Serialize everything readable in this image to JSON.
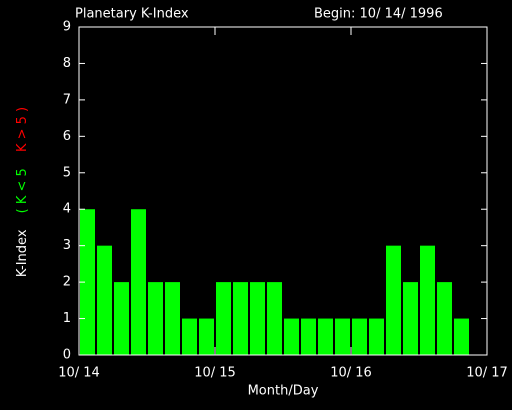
{
  "chart_data": {
    "type": "bar",
    "title": "Planetary K-Index",
    "subtitle": "Begin: 10/ 14/ 1996",
    "y_label": "K-Index",
    "legend": [
      {
        "label": "( K < 5",
        "color": "#00ff00"
      },
      {
        "label": "K > 5 )",
        "color": "#ff0000"
      }
    ],
    "x_label": "Month/Day",
    "x": [
      0,
      0.125,
      0.25,
      0.375,
      0.5,
      0.625,
      0.75,
      0.875,
      1,
      1.125,
      1.25,
      1.375,
      1.5,
      1.625,
      1.75,
      1.875,
      2,
      2.125,
      2.25,
      2.375,
      2.5,
      2.625,
      2.75
    ],
    "values": [
      4,
      3,
      2,
      4,
      2,
      2,
      1,
      1,
      2,
      2,
      2,
      2,
      1,
      1,
      1,
      1,
      1,
      1,
      3,
      2,
      3,
      2,
      1
    ],
    "bar_width": 0.125,
    "color": "#00ff00",
    "xlim": [
      0,
      3
    ],
    "xticks": [
      {
        "value": 0,
        "label": "10/ 14"
      },
      {
        "value": 1,
        "label": "10/ 15"
      },
      {
        "value": 2,
        "label": "10/ 16"
      },
      {
        "value": 3,
        "label": "10/ 17"
      }
    ],
    "ylim": [
      0,
      9
    ],
    "yticks": [
      0,
      1,
      2,
      3,
      4,
      5,
      6,
      7,
      8,
      9
    ]
  }
}
